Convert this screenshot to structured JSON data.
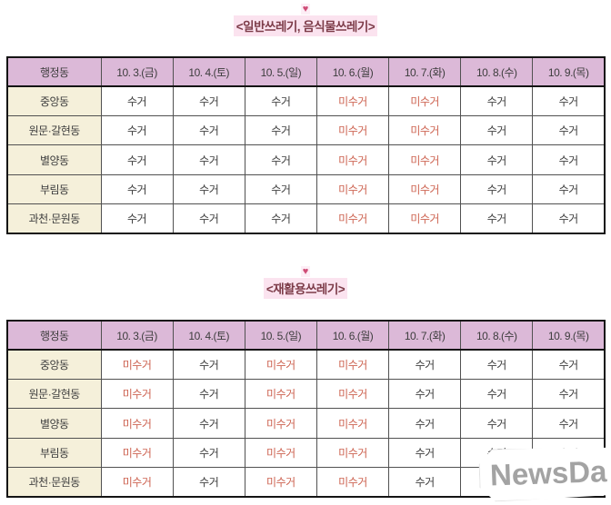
{
  "icons": {
    "heart_glyph": "♥"
  },
  "colors": {
    "header_bg": "#dcb9d8",
    "district_bg": "#f5f0da",
    "title_text": "#7d3c49",
    "title_highlight": "#fbe3ef",
    "heart": "#cf4d77",
    "not_collected_text": "#cd6351",
    "collected_text": "#3c3c3c",
    "table_border": "#141414"
  },
  "status": {
    "collected": "수거",
    "not_collected": "미수거"
  },
  "sections": [
    {
      "title": "<일반쓰레기, 음식물쓰레기>"
    },
    {
      "title": "<재활용쓰레기>"
    }
  ],
  "tables": [
    {
      "name": "general-and-food-waste",
      "columns": [
        "행정동",
        "10. 3.(금)",
        "10. 4.(토)",
        "10. 5.(일)",
        "10. 6.(월)",
        "10. 7.(화)",
        "10. 8.(수)",
        "10. 9.(목)"
      ],
      "rows": [
        {
          "district": "중앙동",
          "values": [
            "수거",
            "수거",
            "수거",
            "미수거",
            "미수거",
            "수거",
            "수거"
          ]
        },
        {
          "district": "원문·갈현동",
          "values": [
            "수거",
            "수거",
            "수거",
            "미수거",
            "미수거",
            "수거",
            "수거"
          ]
        },
        {
          "district": "별양동",
          "values": [
            "수거",
            "수거",
            "수거",
            "미수거",
            "미수거",
            "수거",
            "수거"
          ]
        },
        {
          "district": "부림동",
          "values": [
            "수거",
            "수거",
            "수거",
            "미수거",
            "미수거",
            "수거",
            "수거"
          ]
        },
        {
          "district": "과천·문원동",
          "values": [
            "수거",
            "수거",
            "수거",
            "미수거",
            "미수거",
            "수거",
            "수거"
          ]
        }
      ]
    },
    {
      "name": "recyclable-waste",
      "columns": [
        "행정동",
        "10. 3.(금)",
        "10. 4.(토)",
        "10. 5.(일)",
        "10. 6.(월)",
        "10. 7.(화)",
        "10. 8.(수)",
        "10. 9.(목)"
      ],
      "rows": [
        {
          "district": "중앙동",
          "values": [
            "미수거",
            "수거",
            "미수거",
            "미수거",
            "수거",
            "수거",
            "수거"
          ]
        },
        {
          "district": "원문·갈현동",
          "values": [
            "미수거",
            "수거",
            "미수거",
            "미수거",
            "수거",
            "수거",
            "수거"
          ]
        },
        {
          "district": "별양동",
          "values": [
            "미수거",
            "수거",
            "미수거",
            "미수거",
            "수거",
            "수거",
            "수거"
          ]
        },
        {
          "district": "부림동",
          "values": [
            "미수거",
            "수거",
            "미수거",
            "미수거",
            "수거",
            "수거",
            "수거"
          ]
        },
        {
          "district": "과천·문원동",
          "values": [
            "미수거",
            "수거",
            "미수거",
            "미수거",
            "수거",
            "수거",
            "수거"
          ]
        }
      ]
    }
  ],
  "watermark": {
    "text": "NewsDa"
  }
}
